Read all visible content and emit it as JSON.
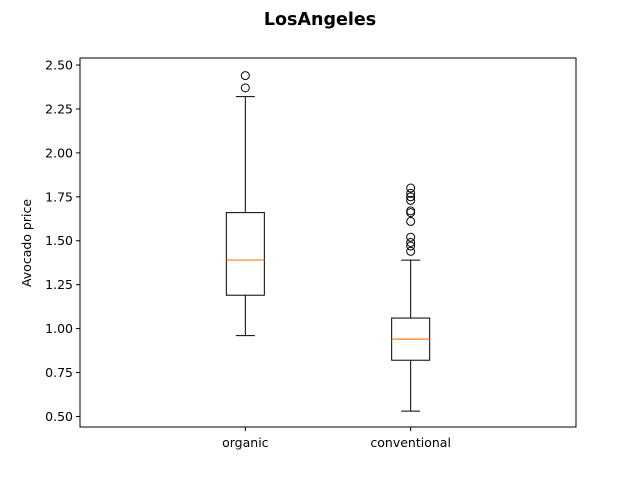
{
  "chart_data": {
    "type": "box",
    "title": "LosAngeles",
    "xlabel": "",
    "ylabel": "Avocado price",
    "ylim": [
      0.44,
      2.54
    ],
    "yticks": [
      0.5,
      0.75,
      1.0,
      1.25,
      1.5,
      1.75,
      2.0,
      2.25,
      2.5
    ],
    "ytick_labels": [
      "0.50",
      "0.75",
      "1.00",
      "1.25",
      "1.50",
      "1.75",
      "2.00",
      "2.25",
      "2.50"
    ],
    "grid": false,
    "categories": [
      "organic",
      "conventional"
    ],
    "boxes": [
      {
        "name": "organic",
        "whisker_low": 0.96,
        "q1": 1.19,
        "median": 1.39,
        "q3": 1.66,
        "whisker_high": 2.32,
        "outliers": [
          2.37,
          2.44
        ]
      },
      {
        "name": "conventional",
        "whisker_low": 0.53,
        "q1": 0.82,
        "median": 0.94,
        "q3": 1.06,
        "whisker_high": 1.39,
        "outliers": [
          1.44,
          1.47,
          1.49,
          1.52,
          1.61,
          1.66,
          1.67,
          1.73,
          1.75,
          1.77,
          1.8
        ]
      }
    ],
    "colors": {
      "box": "#000000",
      "median": "#ff7f0e",
      "outlier": "#000000"
    }
  }
}
